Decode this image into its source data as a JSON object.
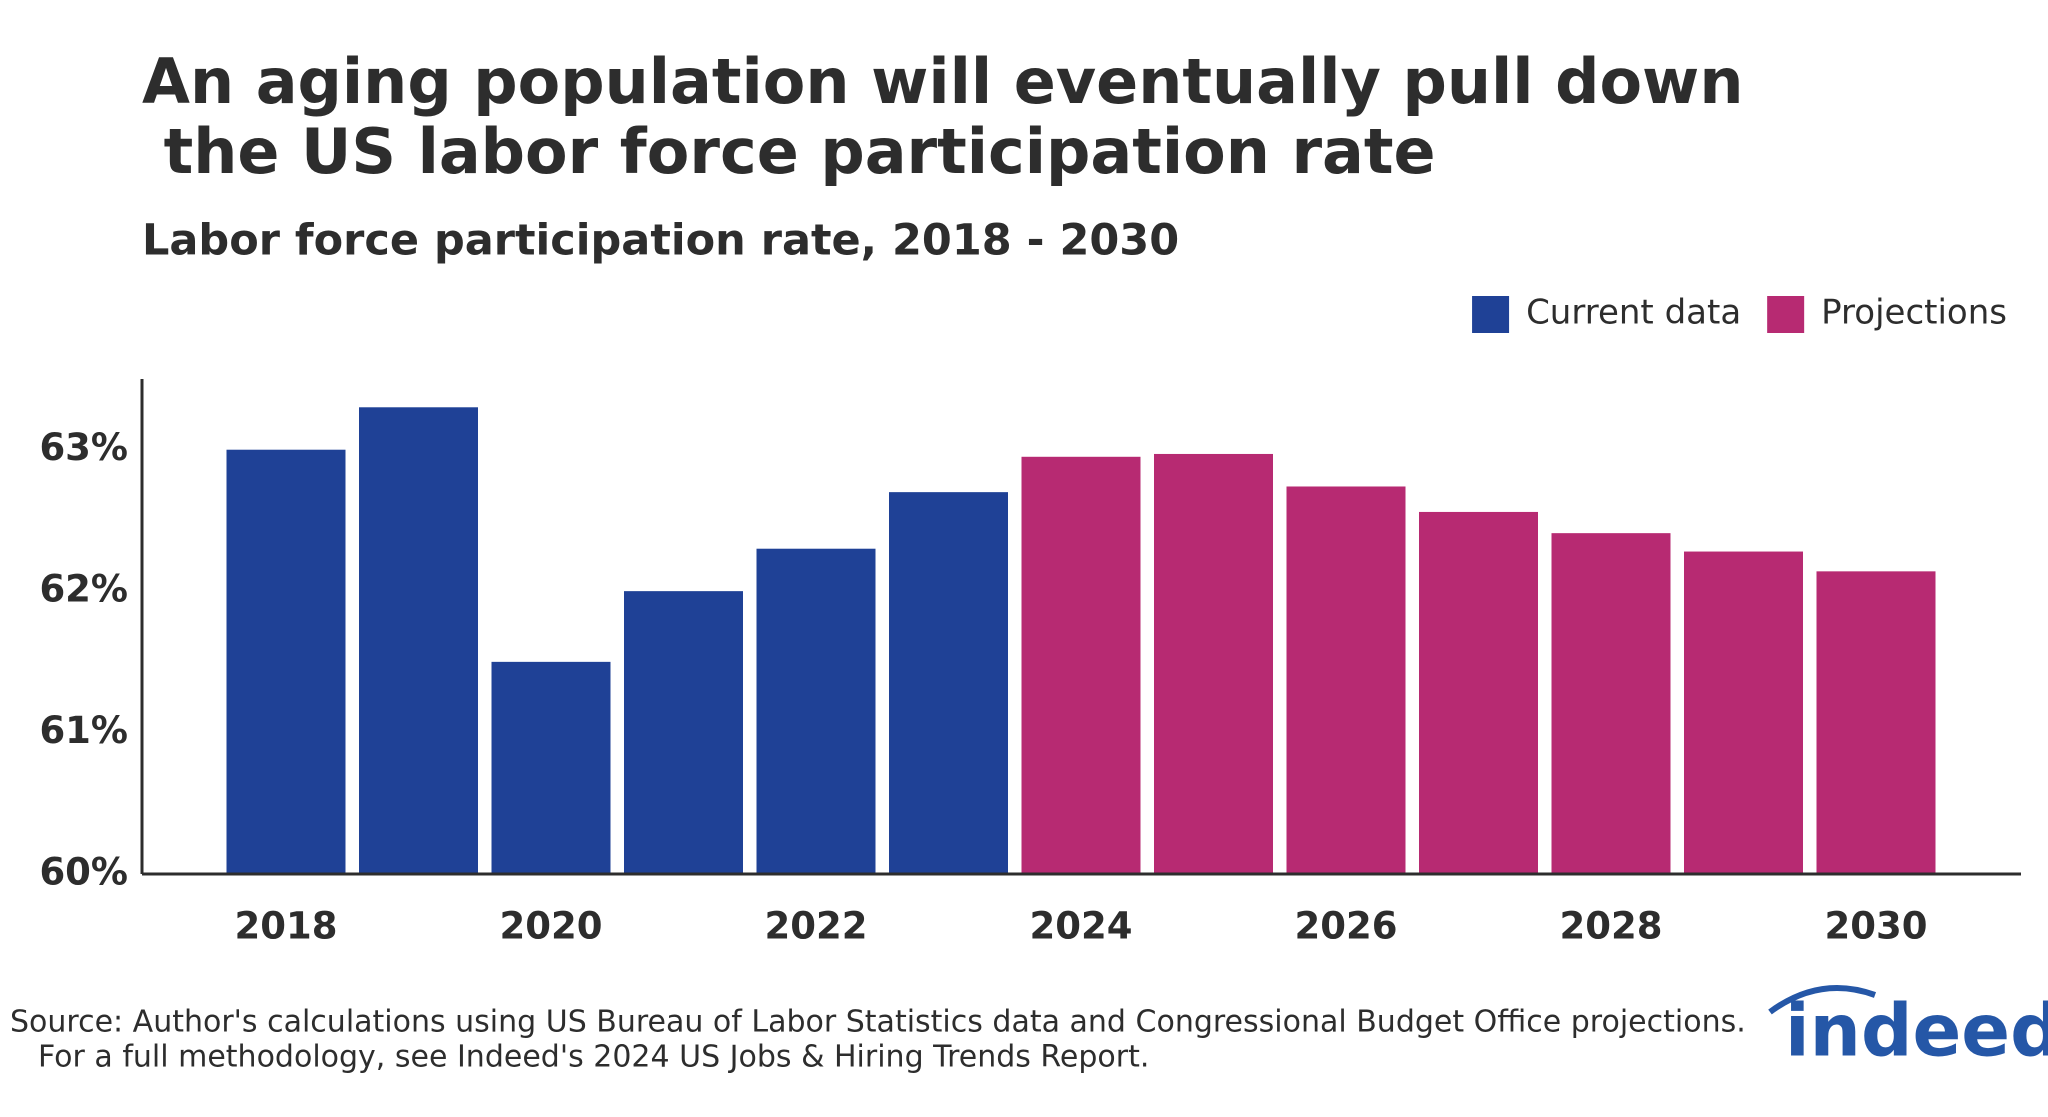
{
  "chart_data": {
    "type": "bar",
    "title": [
      "An aging population will eventually pull down",
      " the US labor force participation rate"
    ],
    "subtitle": "Labor force participation rate, 2018 - 2030",
    "categories": [
      "2018",
      null,
      "2020",
      null,
      "2022",
      null,
      "2024",
      null,
      "2026",
      null,
      "2028",
      null,
      "2030"
    ],
    "series": [
      {
        "name": "Current data",
        "color": "#1f4196",
        "values": [
          63.0,
          63.3,
          61.5,
          62.0,
          62.3,
          62.7,
          null,
          null,
          null,
          null,
          null,
          null,
          null
        ]
      },
      {
        "name": "Projections",
        "color": "#b72a72",
        "values": [
          null,
          null,
          null,
          null,
          null,
          null,
          62.95,
          62.97,
          62.74,
          62.56,
          62.41,
          62.28,
          62.14
        ]
      }
    ],
    "ylim": [
      60,
      63.5
    ],
    "yticks": [
      {
        "value": 60,
        "label": "60%"
      },
      {
        "value": 61,
        "label": "61%"
      },
      {
        "value": 62,
        "label": "62%"
      },
      {
        "value": 63,
        "label": "63%"
      }
    ],
    "grid": false,
    "legend": "top-right",
    "source": [
      "Source: Author's calculations using US Bureau of Labor Statistics data and Congressional Budget Office projections.",
      "For a full methodology, see Indeed's 2024 US Jobs & Hiring Trends Report."
    ],
    "logo": "indeed"
  }
}
